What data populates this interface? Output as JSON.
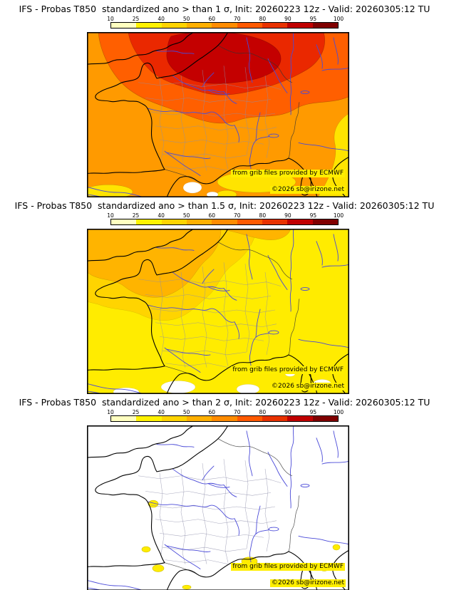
{
  "colors": {
    "coast": "#000000",
    "river": "#4a4ad8",
    "dept": "#8e8eaa",
    "base1": "#ff9a00",
    "red1": "#ff5f00",
    "red2": "#ea2800",
    "red3": "#c40000",
    "yellow": "#ffe400",
    "base2": "#ffec00",
    "deepyellow": "#ffd400",
    "orange2": "#ffb400",
    "white": "#ffffff",
    "highlight": "#ffee00"
  },
  "colorbar": {
    "ticks": [
      "10",
      "25",
      "40",
      "50",
      "60",
      "70",
      "80",
      "90",
      "95",
      "100"
    ],
    "segments": [
      "#ffffc0",
      "#fff200",
      "#ffd400",
      "#ffb000",
      "#ff8c00",
      "#ff5a00",
      "#e83200",
      "#c00000",
      "#800000"
    ]
  },
  "panels": [
    {
      "title": "IFS - Probas T850  standardized ano > than 1 σ, Init: 20260223 12z - Valid: 20260305:12 TU",
      "attribution": "from grib files provided by ECMWF",
      "copyright": "©2026 sb@irizone.net"
    },
    {
      "title": "IFS - Probas T850  standardized ano > than 1.5 σ, Init: 20260223 12z - Valid: 20260305:12 TU",
      "attribution": "from grib files provided by ECMWF",
      "copyright": "©2026 sb@irizone.net"
    },
    {
      "title": "IFS - Probas T850  standardized ano > than 2 σ, Init: 20260223 12z - Valid: 20260305:12 TU",
      "attribution": "from grib files provided by ECMWF",
      "copyright": "©2026 sb@irizone.net"
    }
  ]
}
